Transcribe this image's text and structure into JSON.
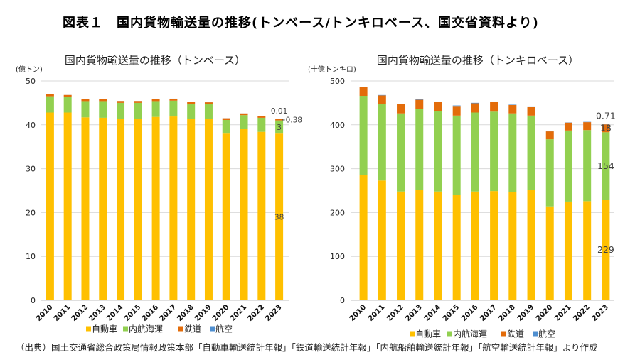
{
  "figure": {
    "title": "図表１　国内貨物輸送量の推移(トンベース/トンキロベース、国交省資料より)",
    "source": "（出典）国土交通省総合政策局情報政策本部「自動車輸送統計年報」「鉄道輸送統計年報」「内航船舶輸送統計年報」「航空輸送統計年報」より作成"
  },
  "chart_data": [
    {
      "type": "bar",
      "stacked": true,
      "title": "国内貨物輸送量の推移（トンベース）",
      "ylabel": "(億トン)",
      "xlabel": "",
      "ylim": [
        0,
        50
      ],
      "yticks": [
        0,
        10,
        20,
        30,
        40,
        50
      ],
      "grid": true,
      "legend": "bottom",
      "categories": [
        "2010",
        "2011",
        "2012",
        "2013",
        "2014",
        "2015",
        "2016",
        "2017",
        "2018",
        "2019",
        "2020",
        "2021",
        "2022",
        "2023"
      ],
      "series": [
        {
          "name": "自動車",
          "color": "#FFC000",
          "values": [
            42.8,
            42.8,
            41.7,
            41.6,
            41.3,
            41.3,
            41.8,
            41.9,
            41.3,
            41.3,
            38.0,
            39.0,
            38.4,
            38.0
          ]
        },
        {
          "name": "内航海運",
          "color": "#92D050",
          "values": [
            3.7,
            3.6,
            3.7,
            3.8,
            3.7,
            3.7,
            3.6,
            3.6,
            3.5,
            3.4,
            3.1,
            3.2,
            3.2,
            3.0
          ]
        },
        {
          "name": "鉄道",
          "color": "#E36C0A",
          "values": [
            0.44,
            0.4,
            0.42,
            0.44,
            0.43,
            0.43,
            0.44,
            0.45,
            0.42,
            0.43,
            0.39,
            0.39,
            0.38,
            0.38
          ]
        },
        {
          "name": "航空",
          "color": "#4F8FD0",
          "values": [
            0.01,
            0.01,
            0.01,
            0.01,
            0.01,
            0.01,
            0.01,
            0.01,
            0.01,
            0.01,
            0.01,
            0.01,
            0.01,
            0.01
          ]
        }
      ],
      "data_labels": [
        {
          "category": "2023",
          "series": "航空",
          "text": "0.01"
        },
        {
          "category": "2023",
          "series": "鉄道",
          "text": "0.38"
        },
        {
          "category": "2023",
          "series": "内航海運",
          "text": "3"
        },
        {
          "category": "2023",
          "series": "自動車",
          "text": "38"
        }
      ]
    },
    {
      "type": "bar",
      "stacked": true,
      "title": "国内貨物輸送量の推移（トンキロベース）",
      "ylabel": "(十億トンキロ)",
      "xlabel": "",
      "ylim": [
        0,
        500
      ],
      "yticks": [
        0,
        100,
        200,
        300,
        400,
        500
      ],
      "grid": true,
      "legend": "bottom",
      "categories": [
        "2010",
        "2011",
        "2012",
        "2013",
        "2014",
        "2015",
        "2016",
        "2017",
        "2018",
        "2019",
        "2020",
        "2021",
        "2022",
        "2023"
      ],
      "series": [
        {
          "name": "自動車",
          "color": "#FFC000",
          "values": [
            286,
            273,
            248,
            251,
            248,
            241,
            248,
            249,
            247,
            251,
            214,
            225,
            226,
            229
          ]
        },
        {
          "name": "内航海運",
          "color": "#92D050",
          "values": [
            180,
            174,
            178,
            185,
            183,
            180,
            180,
            181,
            179,
            170,
            153,
            162,
            162,
            154
          ]
        },
        {
          "name": "鉄道",
          "color": "#E36C0A",
          "values": [
            20,
            20,
            21,
            21,
            21,
            22,
            21,
            22,
            19,
            20,
            18,
            18,
            18,
            18
          ]
        },
        {
          "name": "航空",
          "color": "#4F8FD0",
          "values": [
            1.0,
            0.9,
            1.0,
            1.0,
            1.1,
            1.1,
            1.1,
            1.1,
            0.9,
            0.9,
            0.4,
            0.5,
            0.7,
            0.71
          ]
        }
      ],
      "data_labels": [
        {
          "category": "2023",
          "series": "航空",
          "text": "0.71"
        },
        {
          "category": "2023",
          "series": "鉄道",
          "text": "18"
        },
        {
          "category": "2023",
          "series": "内航海運",
          "text": "154"
        },
        {
          "category": "2023",
          "series": "自動車",
          "text": "229"
        }
      ]
    }
  ]
}
